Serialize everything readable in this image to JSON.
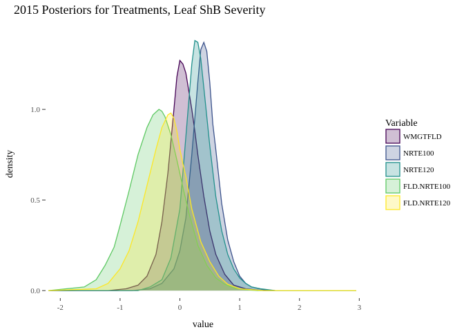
{
  "chart_data": {
    "type": "area",
    "title": "2015 Posteriors for Treatments, Leaf ShB Severity",
    "xlabel": "value",
    "ylabel": "density",
    "xlim": [
      -2.2,
      2.95
    ],
    "ylim": [
      -0.03,
      1.47
    ],
    "x_ticks": [
      -2,
      -1,
      0,
      1,
      2,
      3
    ],
    "y_ticks": [
      0.0,
      0.5,
      1.0
    ],
    "x_tick_labels": [
      "-2",
      "-1",
      "0",
      "1",
      "2",
      "3"
    ],
    "y_tick_labels": [
      "0.0",
      "0.5",
      "1.0"
    ],
    "grid": false,
    "legend": {
      "title": "Variable",
      "position": "right"
    },
    "series": [
      {
        "name": "WMGTFLD",
        "color": "#440154",
        "x": [
          -2.2,
          -1.2,
          -0.9,
          -0.7,
          -0.55,
          -0.4,
          -0.3,
          -0.2,
          -0.1,
          -0.05,
          0.0,
          0.05,
          0.1,
          0.15,
          0.2,
          0.25,
          0.3,
          0.4,
          0.5,
          0.6,
          0.75,
          0.9,
          1.1,
          1.4,
          2.95
        ],
        "y": [
          0.0,
          0.0,
          0.01,
          0.03,
          0.08,
          0.2,
          0.38,
          0.65,
          1.0,
          1.18,
          1.27,
          1.25,
          1.2,
          1.1,
          1.0,
          0.88,
          0.75,
          0.52,
          0.33,
          0.2,
          0.09,
          0.03,
          0.01,
          0.0,
          0.0
        ]
      },
      {
        "name": "NRTE100",
        "color": "#3b528b",
        "x": [
          -2.2,
          -0.8,
          -0.5,
          -0.3,
          -0.1,
          0.0,
          0.1,
          0.2,
          0.3,
          0.35,
          0.4,
          0.45,
          0.5,
          0.55,
          0.6,
          0.7,
          0.8,
          0.9,
          1.0,
          1.1,
          1.2,
          1.4,
          1.6,
          2.95
        ],
        "y": [
          0.0,
          0.0,
          0.01,
          0.04,
          0.12,
          0.22,
          0.4,
          0.75,
          1.15,
          1.33,
          1.37,
          1.32,
          1.15,
          0.92,
          0.78,
          0.48,
          0.28,
          0.16,
          0.08,
          0.04,
          0.02,
          0.005,
          0.0,
          0.0
        ]
      },
      {
        "name": "NRTE120",
        "color": "#21908c",
        "x": [
          -2.2,
          -0.7,
          -0.5,
          -0.3,
          -0.15,
          0.0,
          0.1,
          0.2,
          0.25,
          0.3,
          0.35,
          0.4,
          0.5,
          0.6,
          0.7,
          0.8,
          0.9,
          1.0,
          1.1,
          1.2,
          1.35,
          1.6,
          2.95
        ],
        "y": [
          0.0,
          0.0,
          0.02,
          0.06,
          0.18,
          0.45,
          0.85,
          1.25,
          1.38,
          1.37,
          1.28,
          1.12,
          0.8,
          0.52,
          0.33,
          0.2,
          0.12,
          0.07,
          0.04,
          0.02,
          0.01,
          0.0,
          0.0
        ]
      },
      {
        "name": "FLD.NRTE100",
        "color": "#5dc863",
        "x": [
          -2.2,
          -1.6,
          -1.4,
          -1.25,
          -1.1,
          -1.0,
          -0.85,
          -0.7,
          -0.55,
          -0.45,
          -0.35,
          -0.3,
          -0.25,
          -0.15,
          -0.05,
          0.05,
          0.15,
          0.3,
          0.45,
          0.6,
          0.75,
          0.9,
          1.1,
          1.3,
          2.95
        ],
        "y": [
          0.0,
          0.02,
          0.06,
          0.14,
          0.24,
          0.36,
          0.55,
          0.75,
          0.9,
          0.97,
          1.0,
          0.99,
          0.96,
          0.86,
          0.72,
          0.57,
          0.43,
          0.25,
          0.14,
          0.07,
          0.035,
          0.015,
          0.005,
          0.0,
          0.0
        ]
      },
      {
        "name": "FLD.NRTE120",
        "color": "#fde725",
        "x": [
          -2.2,
          -1.4,
          -1.2,
          -1.0,
          -0.85,
          -0.7,
          -0.55,
          -0.4,
          -0.3,
          -0.2,
          -0.15,
          -0.1,
          -0.05,
          0.0,
          0.05,
          0.1,
          0.2,
          0.35,
          0.5,
          0.65,
          0.8,
          1.0,
          1.2,
          1.4,
          2.95
        ],
        "y": [
          0.0,
          0.01,
          0.04,
          0.12,
          0.22,
          0.38,
          0.58,
          0.78,
          0.9,
          0.97,
          0.98,
          0.95,
          0.88,
          0.78,
          0.7,
          0.63,
          0.45,
          0.27,
          0.16,
          0.08,
          0.035,
          0.01,
          0.005,
          0.0,
          0.0
        ]
      }
    ]
  }
}
